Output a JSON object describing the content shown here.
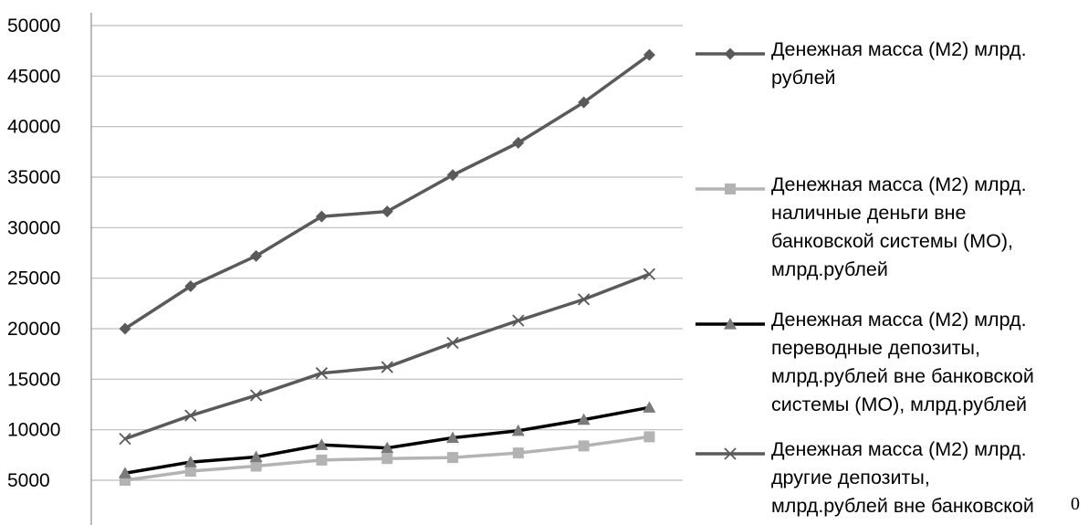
{
  "chart_data": {
    "type": "line",
    "title": "",
    "xlabel": "",
    "ylabel": "",
    "ylim": [
      5000,
      50000
    ],
    "y_ticks": [
      "5000",
      "10000",
      "15000",
      "20000",
      "25000",
      "30000",
      "35000",
      "40000",
      "45000",
      "50000"
    ],
    "grid": "horizontal",
    "legend_position": "right",
    "x": [
      1,
      2,
      3,
      4,
      5,
      6,
      7,
      8,
      9
    ],
    "series": [
      {
        "name": "Денежная масса (М2) млрд.\nрублей",
        "marker": "diamond",
        "color": "#5a5a5a",
        "values": [
          20000,
          24200,
          27200,
          31100,
          31600,
          35200,
          38400,
          42400,
          47100
        ]
      },
      {
        "name": "Денежная масса (М2) млрд.\nналичные деньги вне\nбанковской системы (МО),\nмлрд.рублей",
        "marker": "square",
        "color": "#b3b3b3",
        "values": [
          5000,
          5900,
          6400,
          7000,
          7150,
          7250,
          7700,
          8400,
          9300
        ]
      },
      {
        "name": "Денежная масса (М2) млрд.\nпереводные депозиты,\nмлрд.рублей вне банковской\nсистемы (МО), млрд.рублей",
        "marker": "triangle",
        "color": "#000000",
        "marker_color": "#7a7a7a",
        "values": [
          5700,
          6800,
          7300,
          8500,
          8200,
          9200,
          9900,
          11000,
          12200
        ]
      },
      {
        "name": "Денежная масса (М2) млрд.\nдругие депозиты,\nмлрд.рублей вне банковской",
        "marker": "x",
        "color": "#5a5a5a",
        "values": [
          9100,
          11400,
          13400,
          15600,
          16200,
          18600,
          20800,
          22900,
          25400
        ]
      }
    ]
  },
  "page_fragment": "0"
}
